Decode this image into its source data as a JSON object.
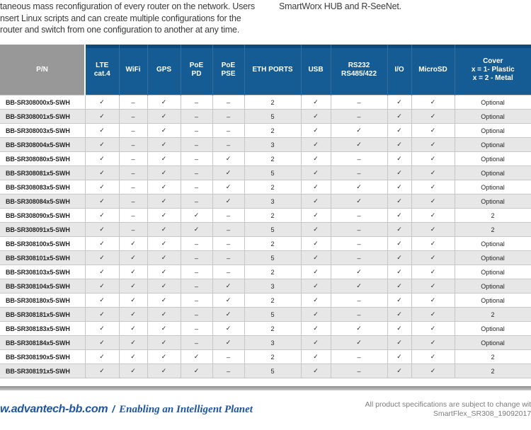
{
  "colors": {
    "header_blue": "#155c94",
    "header_blue_dark": "#0d4a7c",
    "header_gray": "#989898",
    "row_alt_gray": "#e7e7e7",
    "footer_blue": "#1d55a0",
    "separator_bar_gray": "#8d8d8d"
  },
  "intro": {
    "left_lines": [
      "taneous mass reconfiguration of every router on the network. Users",
      "nsert Linux scripts and can create multiple configurations for the",
      "router and switch from one configuration to another at any time."
    ],
    "right_line": "SmartWorx HUB and R-SeeNet."
  },
  "table": {
    "check_glyph": "✓",
    "dash_glyph": "–",
    "columns": [
      {
        "key": "pn",
        "label": "P/N"
      },
      {
        "key": "lte",
        "label": "LTE\ncat.4"
      },
      {
        "key": "wifi",
        "label": "WiFi"
      },
      {
        "key": "gps",
        "label": "GPS"
      },
      {
        "key": "poe-pd",
        "label": "PoE\nPD"
      },
      {
        "key": "poe-pse",
        "label": "PoE\nPSE"
      },
      {
        "key": "eth-ports",
        "label": "ETH PORTS"
      },
      {
        "key": "usb",
        "label": "USB"
      },
      {
        "key": "rs232",
        "label": "RS232\nRS485/422"
      },
      {
        "key": "io",
        "label": "I/O"
      },
      {
        "key": "microsd",
        "label": "MicroSD"
      },
      {
        "key": "cover",
        "label": "Cover\nx = 1- Plastic\nx = 2 - Metal"
      }
    ],
    "rows": [
      {
        "pn": "BB-SR308000x5-SWH",
        "cells": [
          "✓",
          "–",
          "✓",
          "–",
          "–",
          "2",
          "✓",
          "–",
          "✓",
          "✓",
          "Optional"
        ]
      },
      {
        "pn": "BB-SR308001x5-SWH",
        "cells": [
          "✓",
          "–",
          "✓",
          "–",
          "–",
          "5",
          "✓",
          "–",
          "✓",
          "✓",
          "Optional"
        ]
      },
      {
        "pn": "BB-SR308003x5-SWH",
        "cells": [
          "✓",
          "–",
          "✓",
          "–",
          "–",
          "2",
          "✓",
          "✓",
          "✓",
          "✓",
          "Optional"
        ]
      },
      {
        "pn": "BB-SR308004x5-SWH",
        "cells": [
          "✓",
          "–",
          "✓",
          "–",
          "–",
          "3",
          "✓",
          "✓",
          "✓",
          "✓",
          "Optional"
        ]
      },
      {
        "pn": "BB-SR308080x5-SWH",
        "cells": [
          "✓",
          "–",
          "✓",
          "–",
          "✓",
          "2",
          "✓",
          "–",
          "✓",
          "✓",
          "Optional"
        ]
      },
      {
        "pn": "BB-SR308081x5-SWH",
        "cells": [
          "✓",
          "–",
          "✓",
          "–",
          "✓",
          "5",
          "✓",
          "–",
          "✓",
          "✓",
          "Optional"
        ]
      },
      {
        "pn": "BB-SR308083x5-SWH",
        "cells": [
          "✓",
          "–",
          "✓",
          "–",
          "✓",
          "2",
          "✓",
          "✓",
          "✓",
          "✓",
          "Optional"
        ]
      },
      {
        "pn": "BB-SR308084x5-SWH",
        "cells": [
          "✓",
          "–",
          "✓",
          "–",
          "✓",
          "3",
          "✓",
          "✓",
          "✓",
          "✓",
          "Optional"
        ]
      },
      {
        "pn": "BB-SR308090x5-SWH",
        "cells": [
          "✓",
          "–",
          "✓",
          "✓",
          "–",
          "2",
          "✓",
          "–",
          "✓",
          "✓",
          "2"
        ]
      },
      {
        "pn": "BB-SR308091x5-SWH",
        "cells": [
          "✓",
          "–",
          "✓",
          "✓",
          "–",
          "5",
          "✓",
          "–",
          "✓",
          "✓",
          "2"
        ]
      },
      {
        "pn": "BB-SR308100x5-SWH",
        "cells": [
          "✓",
          "✓",
          "✓",
          "–",
          "–",
          "2",
          "✓",
          "–",
          "✓",
          "✓",
          "Optional"
        ]
      },
      {
        "pn": "BB-SR308101x5-SWH",
        "cells": [
          "✓",
          "✓",
          "✓",
          "–",
          "–",
          "5",
          "✓",
          "–",
          "✓",
          "✓",
          "Optional"
        ]
      },
      {
        "pn": "BB-SR308103x5-SWH",
        "cells": [
          "✓",
          "✓",
          "✓",
          "–",
          "–",
          "2",
          "✓",
          "✓",
          "✓",
          "✓",
          "Optional"
        ]
      },
      {
        "pn": "BB-SR308104x5-SWH",
        "cells": [
          "✓",
          "✓",
          "✓",
          "–",
          "✓",
          "3",
          "✓",
          "✓",
          "✓",
          "✓",
          "Optional"
        ]
      },
      {
        "pn": "BB-SR308180x5-SWH",
        "cells": [
          "✓",
          "✓",
          "✓",
          "–",
          "✓",
          "2",
          "✓",
          "–",
          "✓",
          "✓",
          "Optional"
        ]
      },
      {
        "pn": "BB-SR308181x5-SWH",
        "cells": [
          "✓",
          "✓",
          "✓",
          "–",
          "✓",
          "5",
          "✓",
          "–",
          "✓",
          "✓",
          "2"
        ]
      },
      {
        "pn": "BB-SR308183x5-SWH",
        "cells": [
          "✓",
          "✓",
          "✓",
          "–",
          "✓",
          "2",
          "✓",
          "✓",
          "✓",
          "✓",
          "Optional"
        ]
      },
      {
        "pn": "BB-SR308184x5-SWH",
        "cells": [
          "✓",
          "✓",
          "✓",
          "–",
          "✓",
          "3",
          "✓",
          "✓",
          "✓",
          "✓",
          "Optional"
        ]
      },
      {
        "pn": "BB-SR308190x5-SWH",
        "cells": [
          "✓",
          "✓",
          "✓",
          "✓",
          "–",
          "2",
          "✓",
          "–",
          "✓",
          "✓",
          "2"
        ]
      },
      {
        "pn": "BB-SR308191x5-SWH",
        "cells": [
          "✓",
          "✓",
          "✓",
          "✓",
          "–",
          "5",
          "✓",
          "–",
          "✓",
          "✓",
          "2"
        ]
      }
    ]
  },
  "footer": {
    "site": "w.advantech-bb.com",
    "separator": "/",
    "tagline": "Enabling an Intelligent Planet",
    "note_line1": "All product specifications are subject to change with",
    "note_line2": "SmartFlex_SR308_19092017d"
  }
}
